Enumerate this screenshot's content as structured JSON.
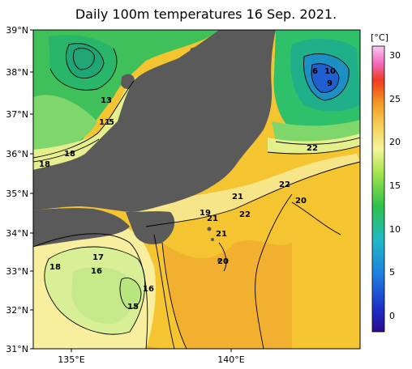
{
  "title": "Daily 100m temperatures 16 Sep. 2021.",
  "lat_labels": [
    "39°N",
    "38°N",
    "37°N",
    "36°N",
    "35°N",
    "34°N",
    "33°N",
    "32°N",
    "31°N"
  ],
  "lon_labels": [
    "135°E",
    "140°E"
  ],
  "colorbar": {
    "unit": "[°C]",
    "ticks": [
      "30",
      "25",
      "20",
      "15",
      "10",
      "5",
      "0"
    ],
    "range": [
      -2,
      31
    ]
  },
  "contour_labels": [
    "6",
    "10",
    "9",
    "13",
    "11",
    "5",
    "18",
    "18",
    "22",
    "22",
    "20",
    "19",
    "21",
    "22",
    "21",
    "20",
    "17",
    "18",
    "16",
    "16",
    "15"
  ]
}
